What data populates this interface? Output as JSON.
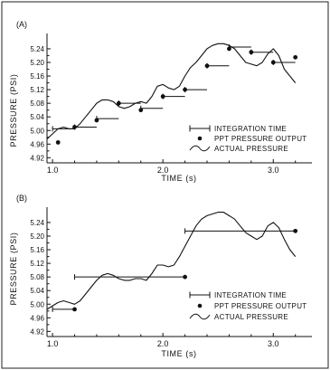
{
  "chart_data": [
    {
      "type": "line",
      "panel_label": "(A)",
      "xlabel": "TIME (s)",
      "ylabel": "PRESSURE (PSI)",
      "xlim": [
        0.95,
        3.35
      ],
      "ylim": [
        4.905,
        5.285
      ],
      "x_ticks": [
        1.0,
        2.0,
        3.0
      ],
      "x_tick_labels": [
        "1.0",
        "2.0",
        "3.0"
      ],
      "y_ticks": [
        4.92,
        4.96,
        5.0,
        5.04,
        5.08,
        5.12,
        5.16,
        5.2,
        5.24
      ],
      "y_tick_labels": [
        "4.92",
        "4.96",
        "5.00",
        "5.04",
        "5.08",
        "5.12",
        "5.16",
        "5.20",
        "5.24"
      ],
      "legend": [
        "INTEGRATION TIME",
        "PPT PRESSURE OUTPUT",
        "ACTUAL PRESSURE"
      ],
      "series": [
        {
          "kind": "actual_pressure",
          "x": [
            0.95,
            1.0,
            1.05,
            1.1,
            1.15,
            1.2,
            1.25,
            1.3,
            1.35,
            1.4,
            1.45,
            1.5,
            1.55,
            1.6,
            1.65,
            1.7,
            1.75,
            1.8,
            1.85,
            1.9,
            1.95,
            2.0,
            2.05,
            2.1,
            2.15,
            2.2,
            2.25,
            2.3,
            2.35,
            2.4,
            2.45,
            2.5,
            2.55,
            2.6,
            2.65,
            2.7,
            2.75,
            2.8,
            2.85,
            2.9,
            2.95,
            3.0,
            3.05,
            3.1,
            3.15,
            3.2
          ],
          "y": [
            4.975,
            4.99,
            5.005,
            5.01,
            5.005,
            5.005,
            5.02,
            5.04,
            5.06,
            5.08,
            5.09,
            5.09,
            5.085,
            5.07,
            5.065,
            5.07,
            5.08,
            5.085,
            5.08,
            5.1,
            5.13,
            5.135,
            5.125,
            5.12,
            5.13,
            5.16,
            5.185,
            5.2,
            5.22,
            5.24,
            5.25,
            5.255,
            5.255,
            5.25,
            5.24,
            5.22,
            5.2,
            5.195,
            5.19,
            5.2,
            5.225,
            5.24,
            5.22,
            5.18,
            5.16,
            5.14
          ]
        },
        {
          "kind": "ppt_pressure_output",
          "x": [
            1.05,
            1.2,
            1.4,
            1.6,
            1.8,
            2.0,
            2.2,
            2.4,
            2.6,
            2.8,
            3.0,
            3.2
          ],
          "y": [
            4.965,
            5.01,
            5.03,
            5.08,
            5.06,
            5.1,
            5.12,
            5.19,
            5.24,
            5.23,
            5.2,
            5.215
          ]
        },
        {
          "kind": "integration_time",
          "intervals": [
            [
              1.0,
              1.2
            ],
            [
              1.2,
              1.4
            ],
            [
              1.4,
              1.6
            ],
            [
              1.6,
              1.8
            ],
            [
              1.8,
              2.0
            ],
            [
              2.0,
              2.2
            ],
            [
              2.2,
              2.4
            ],
            [
              2.4,
              2.6
            ],
            [
              2.6,
              2.8
            ],
            [
              2.8,
              3.0
            ],
            [
              3.0,
              3.2
            ]
          ],
          "y": [
            5.005,
            5.01,
            5.035,
            5.08,
            5.065,
            5.1,
            5.12,
            5.19,
            5.245,
            5.23,
            5.2
          ]
        }
      ]
    },
    {
      "type": "line",
      "panel_label": "(B)",
      "xlabel": "TIME (s)",
      "ylabel": "PRESSURE (PSI)",
      "xlim": [
        0.95,
        3.35
      ],
      "ylim": [
        4.905,
        5.285
      ],
      "x_ticks": [
        1.0,
        2.0,
        3.0
      ],
      "x_tick_labels": [
        "1.0",
        "2.0",
        "3.0"
      ],
      "y_ticks": [
        4.92,
        4.96,
        5.0,
        5.04,
        5.08,
        5.12,
        5.16,
        5.2,
        5.24
      ],
      "y_tick_labels": [
        "4.92",
        "4.96",
        "5.00",
        "5.04",
        "5.08",
        "5.12",
        "5.16",
        "5.20",
        "5.24"
      ],
      "legend": [
        "INTEGRATION TIME",
        "PPT PRESSURE OUTPUT",
        "ACTUAL PRESSURE"
      ],
      "series": [
        {
          "kind": "actual_pressure",
          "x": [
            0.95,
            1.0,
            1.05,
            1.1,
            1.15,
            1.2,
            1.25,
            1.3,
            1.35,
            1.4,
            1.45,
            1.5,
            1.55,
            1.6,
            1.65,
            1.7,
            1.75,
            1.8,
            1.85,
            1.9,
            1.95,
            2.0,
            2.05,
            2.1,
            2.15,
            2.2,
            2.25,
            2.3,
            2.35,
            2.4,
            2.45,
            2.5,
            2.55,
            2.6,
            2.65,
            2.7,
            2.75,
            2.8,
            2.85,
            2.9,
            2.95,
            3.0,
            3.05,
            3.1,
            3.15,
            3.2
          ],
          "y": [
            4.985,
            4.995,
            5.005,
            5.01,
            5.005,
            5.0,
            5.01,
            5.03,
            5.05,
            5.07,
            5.085,
            5.09,
            5.085,
            5.075,
            5.07,
            5.07,
            5.075,
            5.075,
            5.07,
            5.09,
            5.115,
            5.115,
            5.11,
            5.115,
            5.14,
            5.17,
            5.2,
            5.23,
            5.25,
            5.26,
            5.265,
            5.27,
            5.27,
            5.26,
            5.25,
            5.23,
            5.21,
            5.2,
            5.19,
            5.2,
            5.23,
            5.24,
            5.225,
            5.19,
            5.16,
            5.14
          ]
        },
        {
          "kind": "ppt_pressure_output",
          "x": [
            1.2,
            2.2,
            3.2
          ],
          "y": [
            4.985,
            5.08,
            5.215
          ]
        },
        {
          "kind": "integration_time",
          "intervals": [
            [
              1.0,
              1.2
            ],
            [
              1.2,
              2.2
            ],
            [
              2.2,
              3.2
            ]
          ],
          "y": [
            4.985,
            5.08,
            5.215
          ]
        }
      ]
    }
  ]
}
